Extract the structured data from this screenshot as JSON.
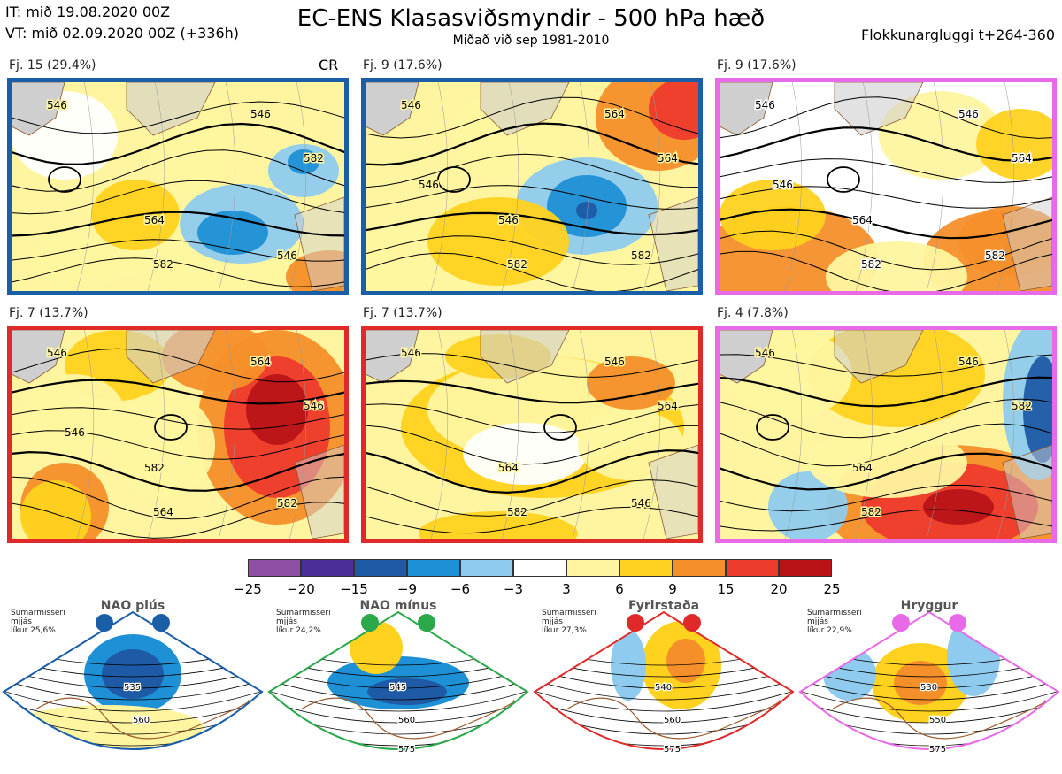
{
  "header": {
    "init": "IT: mið 19.08.2020 00Z",
    "valid": "VT: mið 02.09.2020 00Z  (+336h)",
    "title": "EC-ENS Klasasviðsmyndir - 500 hPa hæð",
    "subtitle": "Miðað við sep 1981-2010",
    "window": "Flokkunargluggi t+264-360"
  },
  "chart_data": {
    "type": "heatmap",
    "title": "EC-ENS Klasasviðsmyndir - 500 hPa hæð",
    "subtitle": "Miðað við sep 1981-2010",
    "variable": "500 hPa height anomaly (dam) with height contours",
    "colorbar": {
      "ticks": [
        "−25",
        "−20",
        "−15",
        "−9",
        "−6",
        "−3",
        "3",
        "6",
        "9",
        "15",
        "20",
        "25"
      ],
      "colors": [
        "#8e4fa5",
        "#4b2e97",
        "#1f5aa6",
        "#1e90d6",
        "#8ecbee",
        "#ffffff",
        "#fff5a0",
        "#ffd21f",
        "#f58f2a",
        "#ed3b2d",
        "#b81418"
      ]
    },
    "clusters": [
      {
        "label": "Fj. 15 (29.4%)",
        "members": 15,
        "percent": 29.4,
        "regime": "NAO plús",
        "tag": "CR",
        "contours": [
          "546",
          "546",
          "564",
          "582",
          "582",
          "546"
        ]
      },
      {
        "label": "Fj. 9 (17.6%)",
        "members": 9,
        "percent": 17.6,
        "regime": "NAO plús",
        "tag": "",
        "contours": [
          "546",
          "564",
          "546",
          "564",
          "582",
          "582",
          "546"
        ]
      },
      {
        "label": "Fj. 9 (17.6%)",
        "members": 9,
        "percent": 17.6,
        "regime": "Hryggur",
        "tag": "",
        "contours": [
          "546",
          "546",
          "564",
          "564",
          "582",
          "582",
          "546"
        ]
      },
      {
        "label": "Fj. 7 (13.7%)",
        "members": 7,
        "percent": 13.7,
        "regime": "Fyrirstaða",
        "tag": "",
        "contours": [
          "546",
          "564",
          "582",
          "546",
          "564",
          "582",
          "546"
        ]
      },
      {
        "label": "Fj. 7 (13.7%)",
        "members": 7,
        "percent": 13.7,
        "regime": "Fyrirstaða",
        "tag": "",
        "contours": [
          "546",
          "546",
          "564",
          "564",
          "582",
          "546"
        ]
      },
      {
        "label": "Fj. 4 (7.8%)",
        "members": 4,
        "percent": 7.8,
        "regime": "Hryggur",
        "tag": "",
        "contours": [
          "546",
          "546",
          "564",
          "582",
          "582"
        ]
      }
    ]
  },
  "regimes": [
    {
      "name": "NAO plús",
      "season": "Sumarmisseri",
      "line2": "mjjás",
      "prob": "líkur 25,6%",
      "color": "#1a5ea8",
      "labels": [
        "535",
        "560"
      ]
    },
    {
      "name": "NAO mínus",
      "season": "Sumarmisseri",
      "line2": "mjjás",
      "prob": "líkur 24,2%",
      "color": "#2aa84a",
      "labels": [
        "545",
        "560",
        "575"
      ]
    },
    {
      "name": "Fyrirstaða",
      "season": "Sumarmisseri",
      "line2": "mjjás",
      "prob": "líkur 27,3%",
      "color": "#e02a2a",
      "labels": [
        "540",
        "560",
        "575"
      ]
    },
    {
      "name": "Hryggur",
      "season": "Sumarmisseri",
      "line2": "mjjás",
      "prob": "líkur 22,9%",
      "color": "#e86ae8",
      "labels": [
        "530",
        "550",
        "575"
      ]
    }
  ]
}
